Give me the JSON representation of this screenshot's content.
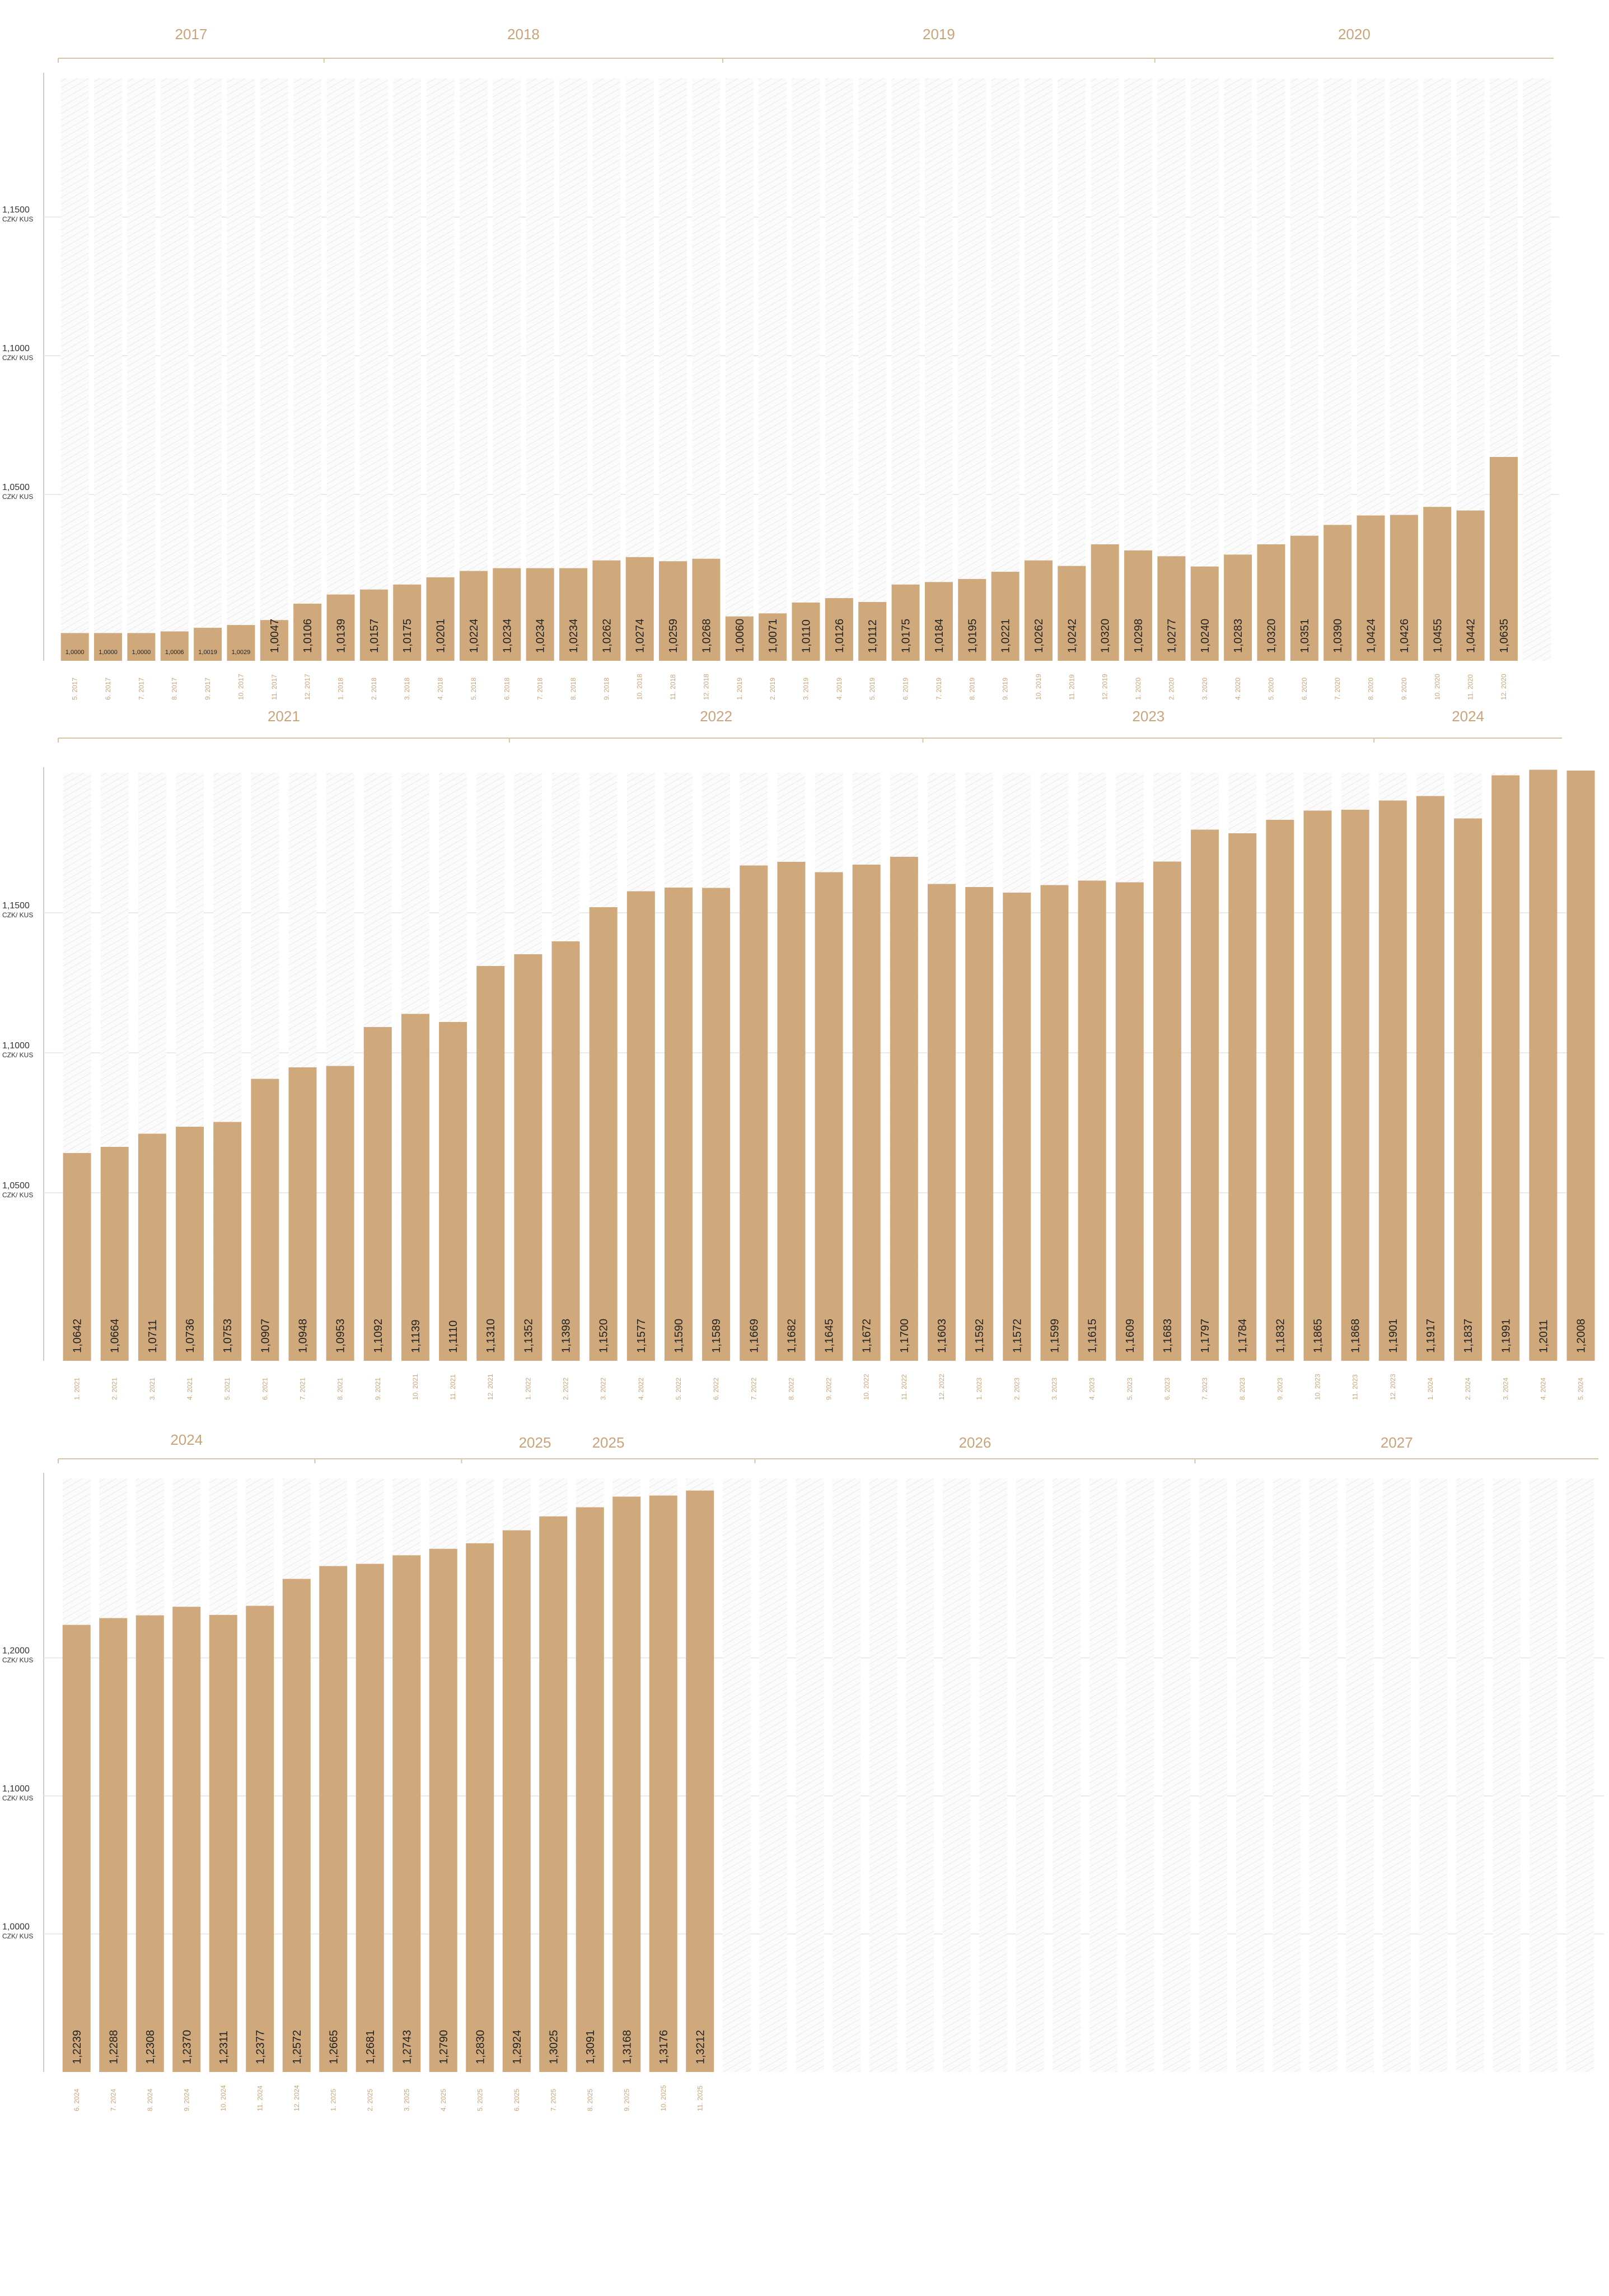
{
  "chart_data": [
    {
      "type": "bar",
      "unit": "CZK/ KUS",
      "years": [
        {
          "label": "2017",
          "from": 0,
          "to": 8
        },
        {
          "label": "2018",
          "from": 8,
          "to": 20
        },
        {
          "label": "2019",
          "from": 20,
          "to": 33
        },
        {
          "label": "2020",
          "from": 33,
          "to": 45
        }
      ],
      "yticks": [
        {
          "value": 1.05,
          "label": "1,0500"
        },
        {
          "value": 1.1,
          "label": "1,1000"
        },
        {
          "value": 1.15,
          "label": "1,1500"
        }
      ],
      "ylim": [
        0.99,
        1.2
      ],
      "slots": 45,
      "categories": [
        "5. 2017",
        "6. 2017",
        "7. 2017",
        "8. 2017",
        "9. 2017",
        "10. 2017",
        "11. 2017",
        "12. 2017",
        "1. 2018",
        "2. 2018",
        "3. 2018",
        "4. 2018",
        "5. 2018",
        "6. 2018",
        "7. 2018",
        "8. 2018",
        "9. 2018",
        "10. 2018",
        "11. 2018",
        "12. 2018",
        "1. 2019",
        "2. 2019",
        "3. 2019",
        "4. 2019",
        "5. 2019",
        "6. 2019",
        "7. 2019",
        "8. 2019",
        "9. 2019",
        "10. 2019",
        "11. 2019",
        "12. 2019",
        "1. 2020",
        "2. 2020",
        "3. 2020",
        "4. 2020",
        "5. 2020",
        "6. 2020",
        "7. 2020",
        "8. 2020",
        "9. 2020",
        "10. 2020",
        "11. 2020",
        "12. 2020"
      ],
      "values": [
        1.0,
        1.0,
        1.0,
        1.0006,
        1.0019,
        1.0029,
        1.0047,
        1.0106,
        1.0139,
        1.0157,
        1.0175,
        1.0201,
        1.0224,
        1.0234,
        1.0234,
        1.0234,
        1.0262,
        1.0274,
        1.0259,
        1.0268,
        1.006,
        1.0071,
        1.011,
        1.0126,
        1.0112,
        1.0175,
        1.0184,
        1.0195,
        1.0221,
        1.0262,
        1.0242,
        1.032,
        1.0298,
        1.0277,
        1.024,
        1.0283,
        1.032,
        1.0351,
        1.039,
        1.0424,
        1.0426,
        1.0455,
        1.0442,
        1.0635
      ],
      "labels": [
        "1,0000",
        "1,0000",
        "1,0000",
        "1,0006",
        "1,0019",
        "1,0029",
        "1,0047",
        "1,0106",
        "1,0139",
        "1,0157",
        "1,0175",
        "1,0201",
        "1,0224",
        "1,0234",
        "1,0234",
        "1,0234",
        "1,0262",
        "1,0274",
        "1,0259",
        "1,0268",
        "1,0060",
        "1,0071",
        "1,0110",
        "1,0126",
        "1,0112",
        "1,0175",
        "1,0184",
        "1,0195",
        "1,0221",
        "1,0262",
        "1,0242",
        "1,0320",
        "1,0298",
        "1,0277",
        "1,0240",
        "1,0283",
        "1,0320",
        "1,0351",
        "1,0390",
        "1,0424",
        "1,0426",
        "1,0455",
        "1,0442",
        "1,0635"
      ]
    },
    {
      "type": "bar",
      "unit": "CZK/ KUS",
      "years": [
        {
          "label": "2021",
          "from": 0,
          "to": 12
        },
        {
          "label": "2022",
          "from": 12,
          "to": 23
        },
        {
          "label": "2023",
          "from": 23,
          "to": 35
        },
        {
          "label": "2024",
          "from": 35,
          "to": 40
        }
      ],
      "yticks": [
        {
          "value": 1.05,
          "label": "1,0500"
        },
        {
          "value": 1.1,
          "label": "1,1000"
        },
        {
          "value": 1.15,
          "label": "1,1500"
        }
      ],
      "ylim": [
        0.99,
        1.2
      ],
      "slots": 40,
      "categories": [
        "1. 2021",
        "2. 2021",
        "3. 2021",
        "4. 2021",
        "5. 2021",
        "6. 2021",
        "7. 2021",
        "8. 2021",
        "9. 2021",
        "10. 2021",
        "11. 2021",
        "12. 2021",
        "1. 2022",
        "2. 2022",
        "3. 2022",
        "4. 2022",
        "5. 2022",
        "6. 2022",
        "7. 2022",
        "8. 2022",
        "9. 2022",
        "10. 2022",
        "11. 2022",
        "12. 2022",
        "1. 2023",
        "2. 2023",
        "3. 2023",
        "4. 2023",
        "5. 2023",
        "6. 2023",
        "7. 2023",
        "8. 2023",
        "9. 2023",
        "10. 2023",
        "11. 2023",
        "12. 2023",
        "1. 2024",
        "2. 2024",
        "3. 2024",
        "4. 2024",
        "5. 2024"
      ],
      "values": [
        1.0642,
        1.0664,
        1.0711,
        1.0736,
        1.0753,
        1.0907,
        1.0948,
        1.0953,
        1.1092,
        1.1139,
        1.111,
        1.131,
        1.1352,
        1.1398,
        1.152,
        1.1577,
        1.159,
        1.1589,
        1.1669,
        1.1682,
        1.1645,
        1.1672,
        1.17,
        1.1603,
        1.1592,
        1.1572,
        1.1599,
        1.1615,
        1.1609,
        1.1683,
        1.1797,
        1.1784,
        1.1832,
        1.1865,
        1.1868,
        1.1901,
        1.1917,
        1.1837,
        1.1991,
        1.2011,
        1.2008
      ],
      "labels": [
        "1,0642",
        "1,0664",
        "1,0711",
        "1,0736",
        "1,0753",
        "1,0907",
        "1,0948",
        "1,0953",
        "1,1092",
        "1,1139",
        "1,1110",
        "1,1310",
        "1,1352",
        "1,1398",
        "1,1520",
        "1,1577",
        "1,1590",
        "1,1589",
        "1,1669",
        "1,1682",
        "1,1645",
        "1,1672",
        "1,1700",
        "1,1603",
        "1,1592",
        "1,1572",
        "1,1599",
        "1,1615",
        "1,1609",
        "1,1683",
        "1,1797",
        "1,1784",
        "1,1832",
        "1,1865",
        "1,1868",
        "1,1901",
        "1,1917",
        "1,1837",
        "1,1991",
        "1,2011",
        "1,2008"
      ]
    },
    {
      "type": "bar",
      "unit": "CZK/ KUS",
      "years": [
        {
          "label": "2024",
          "from": 0,
          "to": 7
        },
        {
          "label": "2025",
          "from": 7,
          "to": 19
        },
        {
          "label": "2025",
          "from": 11,
          "to": 19
        },
        {
          "label": "2026",
          "from": 19,
          "to": 31
        },
        {
          "label": "2027",
          "from": 31,
          "to": 42
        }
      ],
      "yticks": [
        {
          "value": 1.0,
          "label": "1,0000"
        },
        {
          "value": 1.1,
          "label": "1,1000"
        },
        {
          "value": 1.2,
          "label": "1,2000"
        }
      ],
      "ylim": [
        0.9,
        1.33
      ],
      "slots": 42,
      "categories": [
        "6. 2024",
        "7. 2024",
        "8. 2024",
        "9. 2024",
        "10. 2024",
        "11. 2024",
        "12. 2024",
        "1. 2025",
        "2. 2025",
        "3. 2025",
        "4. 2025",
        "5. 2025",
        "6. 2025",
        "7. 2025",
        "8. 2025",
        "9. 2025",
        "10. 2025",
        "11. 2025"
      ],
      "values": [
        1.2239,
        1.2288,
        1.2308,
        1.237,
        1.2311,
        1.2377,
        1.2572,
        1.2665,
        1.2681,
        1.2743,
        1.279,
        1.283,
        1.2924,
        1.3025,
        1.3091,
        1.3168,
        1.3176,
        1.3212
      ],
      "labels": [
        "1,2239",
        "1,2288",
        "1,2308",
        "1,2370",
        "1,2311",
        "1,2377",
        "1,2572",
        "1,2665",
        "1,2681",
        "1,2743",
        "1,2790",
        "1,2830",
        "1,2924",
        "1,3025",
        "1,3091",
        "1,3168",
        "1,3176",
        "1,3212"
      ]
    }
  ],
  "colors": {
    "bar": "#cfa97b",
    "year": "#c9a47a",
    "grid": "#e2e2e2"
  }
}
